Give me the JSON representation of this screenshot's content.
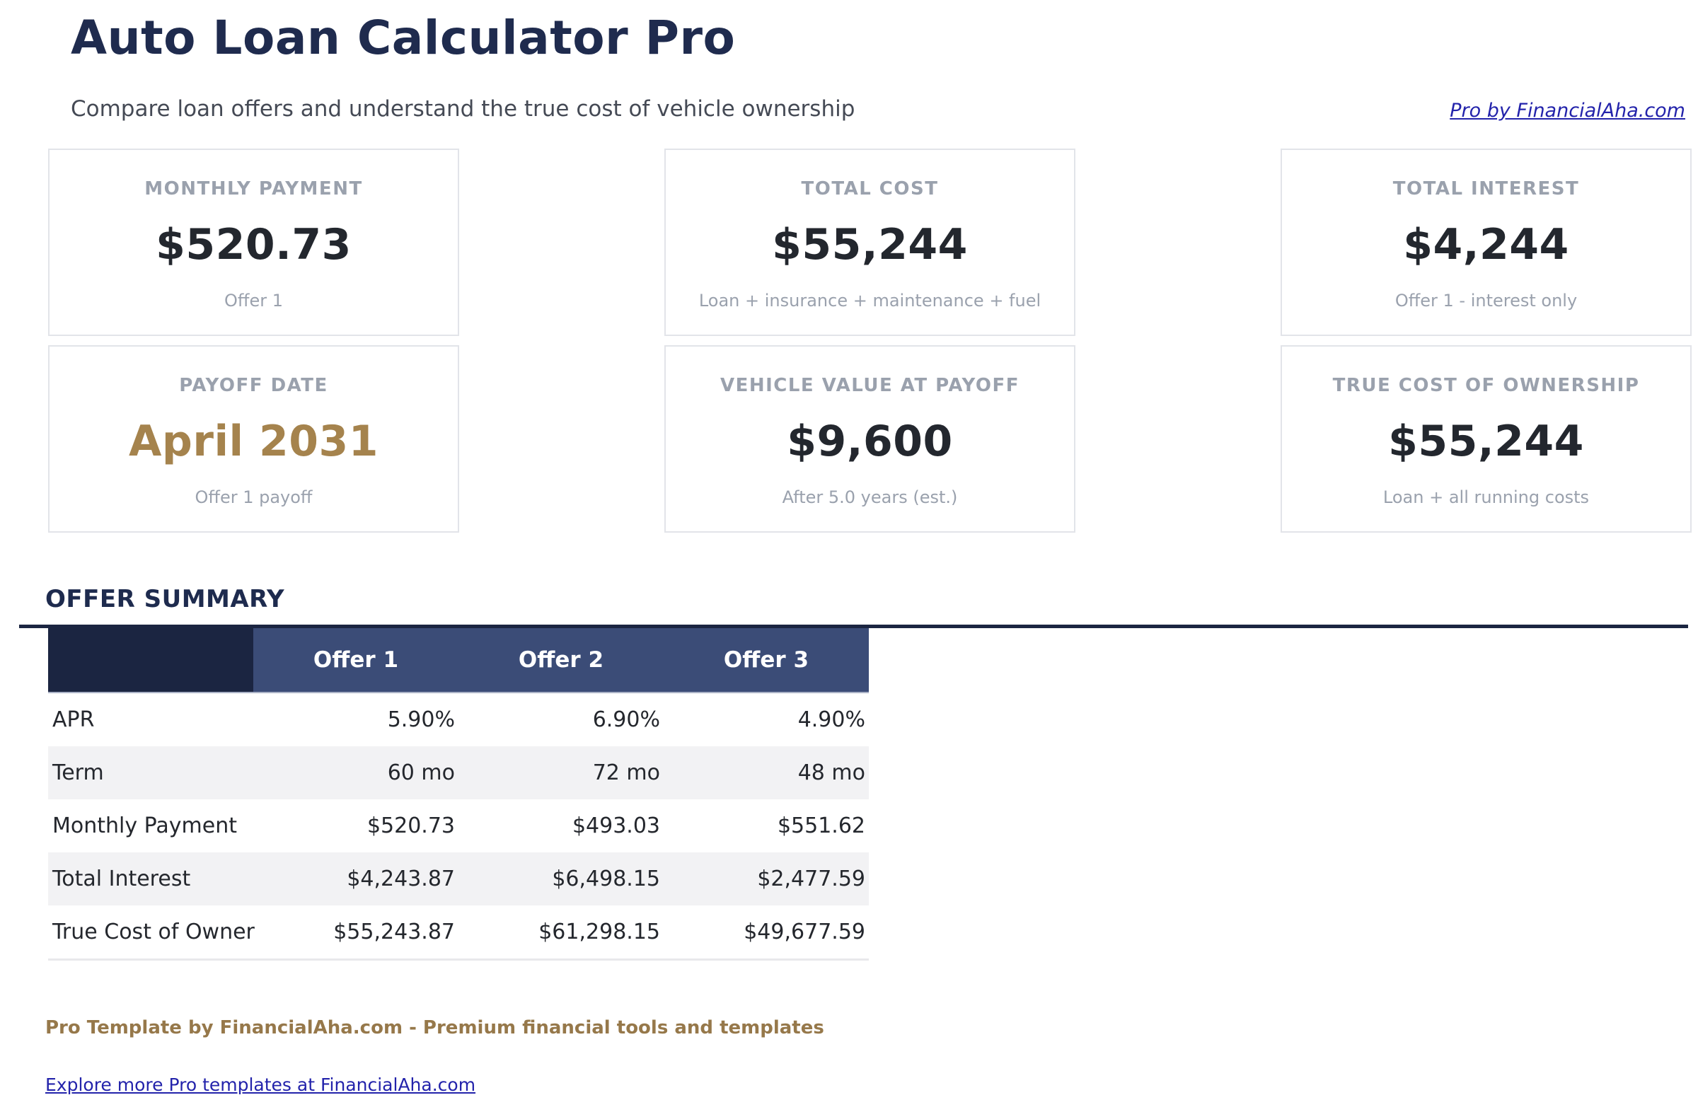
{
  "header": {
    "title": "Auto Loan Calculator Pro",
    "subtitle": "Compare loan offers and understand the true cost of vehicle ownership",
    "brand_link": "Pro by FinancialAha.com"
  },
  "stat_cards": [
    {
      "label": "MONTHLY PAYMENT",
      "value": "$520.73",
      "sub": "Offer 1"
    },
    {
      "label": "TOTAL COST",
      "value": "$55,244",
      "sub": "Loan + insurance + maintenance + fuel"
    },
    {
      "label": "TOTAL INTEREST",
      "value": "$4,244",
      "sub": "Offer 1 - interest only"
    },
    {
      "label": "PAYOFF DATE",
      "value": "April 2031",
      "sub": "Offer 1 payoff"
    },
    {
      "label": "VEHICLE VALUE AT PAYOFF",
      "value": "$9,600",
      "sub": "After 5.0 years (est.)"
    },
    {
      "label": "TRUE COST OF OWNERSHIP",
      "value": "$55,244",
      "sub": "Loan + all running costs"
    }
  ],
  "summary": {
    "section_title": "OFFER SUMMARY",
    "columns": [
      "Offer 1",
      "Offer 2",
      "Offer 3"
    ],
    "rows": [
      {
        "label": "APR",
        "values": [
          "5.90%",
          "6.90%",
          "4.90%"
        ]
      },
      {
        "label": "Term",
        "values": [
          "60 mo",
          "72 mo",
          "48 mo"
        ]
      },
      {
        "label": "Monthly Payment",
        "values": [
          "$520.73",
          "$493.03",
          "$551.62"
        ]
      },
      {
        "label": "Total Interest",
        "values": [
          "$4,243.87",
          "$6,498.15",
          "$2,477.59"
        ]
      },
      {
        "label": "True Cost of Owner",
        "values": [
          "$55,243.87",
          "$61,298.15",
          "$49,677.59"
        ]
      }
    ]
  },
  "footer": {
    "tagline": "Pro Template by FinancialAha.com - Premium financial tools and templates",
    "link": "Explore more Pro templates at FinancialAha.com"
  },
  "colors": {
    "title_navy": "#1f2b4e",
    "header_dark_navy": "#1b2541",
    "header_medium_navy": "#3b4c77",
    "accent_gold": "#a5834d",
    "footer_gold": "#96784a",
    "link_blue": "#2323ab",
    "muted_gray": "#9aa1ad",
    "alt_row_gray": "#f2f2f4"
  }
}
